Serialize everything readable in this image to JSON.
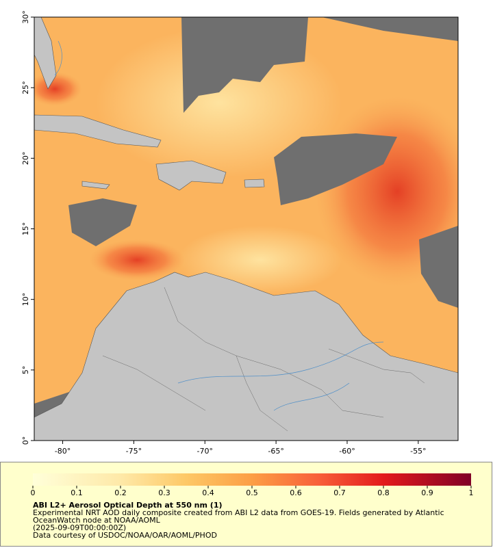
{
  "map": {
    "xlim": [
      -82,
      -52.2
    ],
    "ylim": [
      0,
      30
    ],
    "xticks": [
      {
        "value": -80,
        "label": "-80°"
      },
      {
        "value": -75,
        "label": "-75°"
      },
      {
        "value": -70,
        "label": "-70°"
      },
      {
        "value": -65,
        "label": "-65°"
      },
      {
        "value": -60,
        "label": "-60°"
      },
      {
        "value": -55,
        "label": "-55°"
      }
    ],
    "yticks": [
      {
        "value": 0,
        "label": "0°"
      },
      {
        "value": 5,
        "label": "5°"
      },
      {
        "value": 10,
        "label": "10°"
      },
      {
        "value": 15,
        "label": "15°"
      },
      {
        "value": 20,
        "label": "20°"
      },
      {
        "value": 25,
        "label": "25°"
      },
      {
        "value": 30,
        "label": "30°"
      }
    ]
  },
  "colorbar": {
    "lim": [
      0,
      1
    ],
    "ticks": [
      0,
      0.1,
      0.2,
      0.3,
      0.4,
      0.5,
      0.6,
      0.7,
      0.8,
      0.9,
      1
    ]
  },
  "caption": {
    "title": "ABI L2+ Aerosol Optical Depth at 550 nm (1)",
    "lines": [
      "Experimental NRT AOD daily composite created from ABI L2 data from GOES-19. Fields generated by Atlantic",
      "OceanWatch node at NOAA/AOML",
      "(2025-09-09T00:00:00Z)",
      "Data courtesy of USDOC/NOAA/OAR/AOML/PHOD"
    ]
  }
}
